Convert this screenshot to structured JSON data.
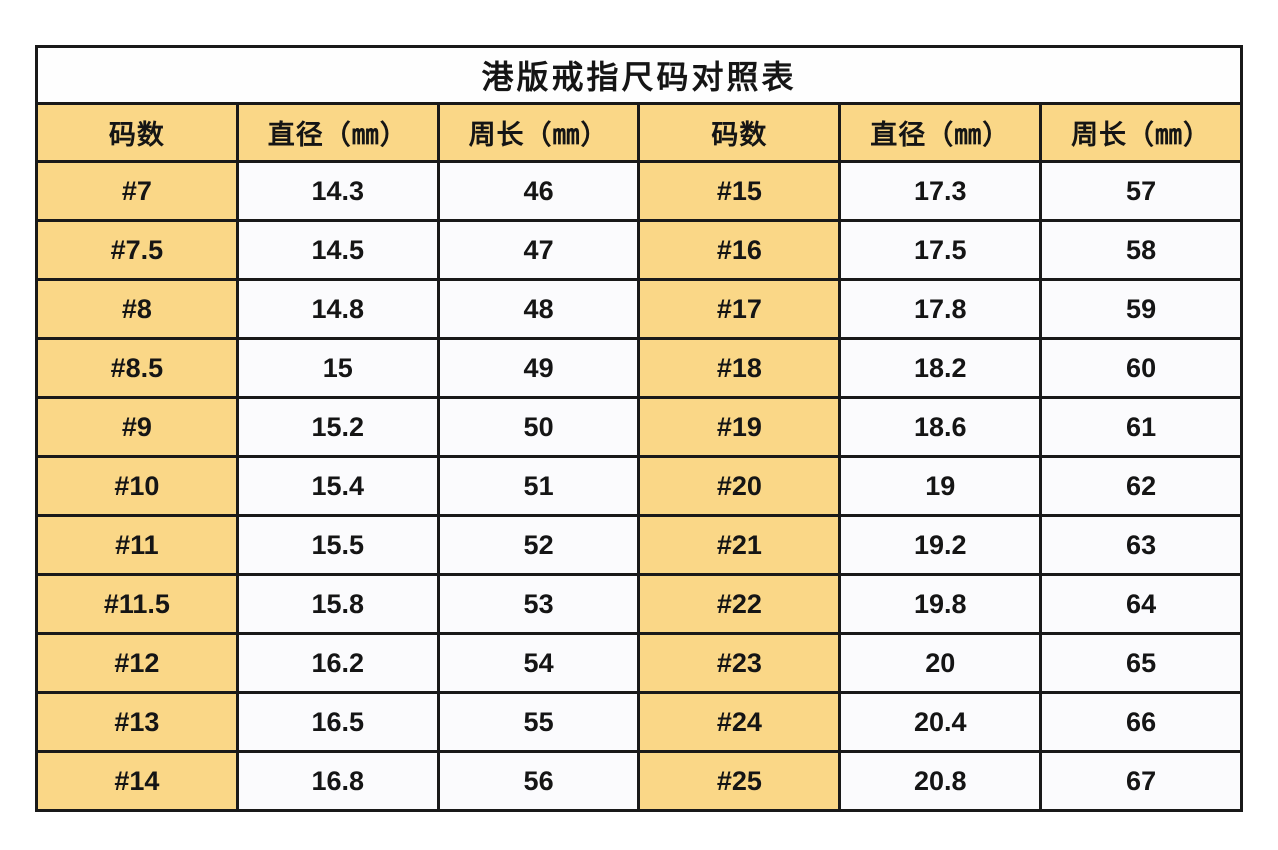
{
  "page": {
    "background": "#ffffff"
  },
  "table": {
    "title": "港版戒指尺码对照表",
    "headers": [
      "码数",
      "直径（㎜）",
      "周长（㎜）",
      "码数",
      "直径（㎜）",
      "周长（㎜）"
    ],
    "rows": [
      [
        "#7",
        "14.3",
        "46",
        "#15",
        "17.3",
        "57"
      ],
      [
        "#7.5",
        "14.5",
        "47",
        "#16",
        "17.5",
        "58"
      ],
      [
        "#8",
        "14.8",
        "48",
        "#17",
        "17.8",
        "59"
      ],
      [
        "#8.5",
        "15",
        "49",
        "#18",
        "18.2",
        "60"
      ],
      [
        "#9",
        "15.2",
        "50",
        "#19",
        "18.6",
        "61"
      ],
      [
        "#10",
        "15.4",
        "51",
        "#20",
        "19",
        "62"
      ],
      [
        "#11",
        "15.5",
        "52",
        "#21",
        "19.2",
        "63"
      ],
      [
        "#11.5",
        "15.8",
        "53",
        "#22",
        "19.8",
        "64"
      ],
      [
        "#12",
        "16.2",
        "54",
        "#23",
        "20",
        "65"
      ],
      [
        "#13",
        "16.5",
        "55",
        "#24",
        "20.4",
        "66"
      ],
      [
        "#14",
        "16.8",
        "56",
        "#25",
        "20.8",
        "67"
      ]
    ],
    "colors": {
      "page_bg": "#ffffff",
      "title_bg": "#fefefe",
      "header_bg": "#fad787",
      "cell_bg": "#fbfbfd",
      "border": "#191919",
      "text": "#151515"
    }
  },
  "chart_data": {
    "type": "table",
    "title": "港版戒指尺码对照表",
    "columns": [
      "码数",
      "直径（㎜）",
      "周长（㎜）"
    ],
    "rows": [
      {
        "size": "#7",
        "diameter_mm": 14.3,
        "circumference_mm": 46
      },
      {
        "size": "#7.5",
        "diameter_mm": 14.5,
        "circumference_mm": 47
      },
      {
        "size": "#8",
        "diameter_mm": 14.8,
        "circumference_mm": 48
      },
      {
        "size": "#8.5",
        "diameter_mm": 15,
        "circumference_mm": 49
      },
      {
        "size": "#9",
        "diameter_mm": 15.2,
        "circumference_mm": 50
      },
      {
        "size": "#10",
        "diameter_mm": 15.4,
        "circumference_mm": 51
      },
      {
        "size": "#11",
        "diameter_mm": 15.5,
        "circumference_mm": 52
      },
      {
        "size": "#11.5",
        "diameter_mm": 15.8,
        "circumference_mm": 53
      },
      {
        "size": "#12",
        "diameter_mm": 16.2,
        "circumference_mm": 54
      },
      {
        "size": "#13",
        "diameter_mm": 16.5,
        "circumference_mm": 55
      },
      {
        "size": "#14",
        "diameter_mm": 16.8,
        "circumference_mm": 56
      },
      {
        "size": "#15",
        "diameter_mm": 17.3,
        "circumference_mm": 57
      },
      {
        "size": "#16",
        "diameter_mm": 17.5,
        "circumference_mm": 58
      },
      {
        "size": "#17",
        "diameter_mm": 17.8,
        "circumference_mm": 59
      },
      {
        "size": "#18",
        "diameter_mm": 18.2,
        "circumference_mm": 60
      },
      {
        "size": "#19",
        "diameter_mm": 18.6,
        "circumference_mm": 61
      },
      {
        "size": "#20",
        "diameter_mm": 19,
        "circumference_mm": 62
      },
      {
        "size": "#21",
        "diameter_mm": 19.2,
        "circumference_mm": 63
      },
      {
        "size": "#22",
        "diameter_mm": 19.8,
        "circumference_mm": 64
      },
      {
        "size": "#23",
        "diameter_mm": 20,
        "circumference_mm": 65
      },
      {
        "size": "#24",
        "diameter_mm": 20.4,
        "circumference_mm": 66
      },
      {
        "size": "#25",
        "diameter_mm": 20.8,
        "circumference_mm": 67
      }
    ],
    "layout": {
      "display": "two column-groups side by side, 11 rows each",
      "left_group_sizes": "#7 – #14",
      "right_group_sizes": "#15 – #25",
      "grid": "on"
    }
  }
}
